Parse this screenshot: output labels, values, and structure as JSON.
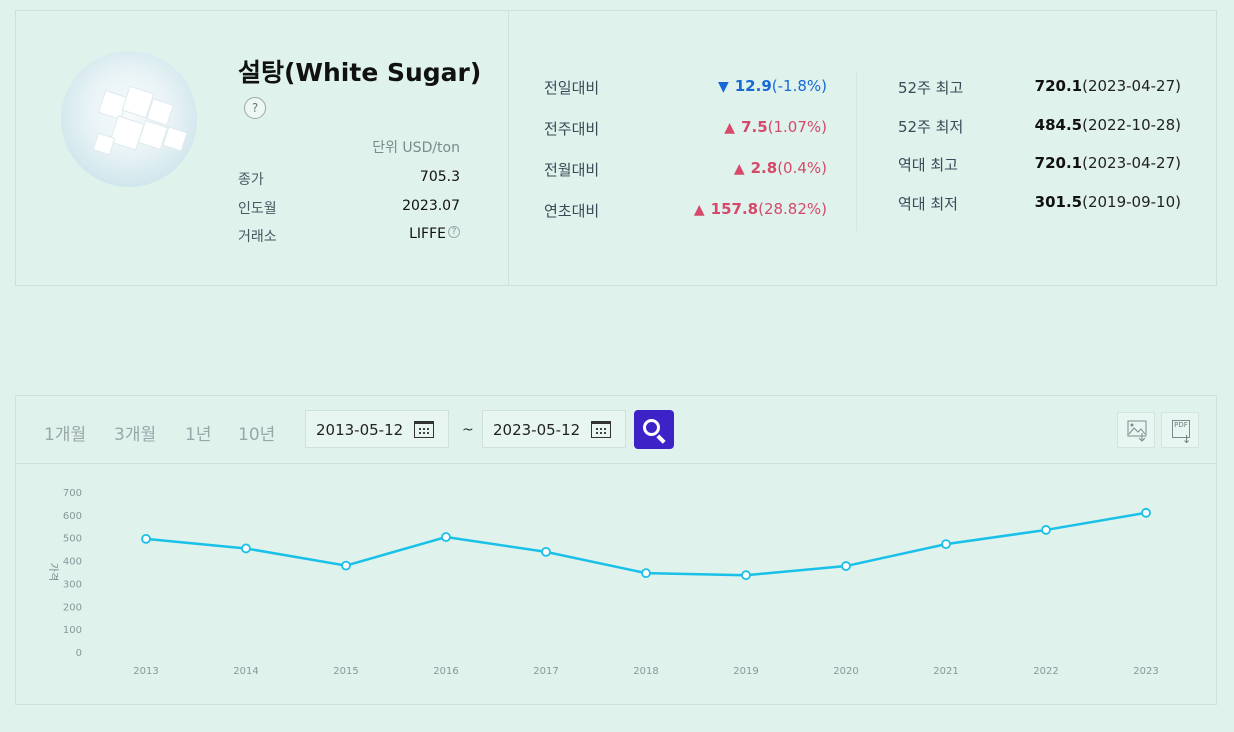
{
  "product": {
    "title": "설탕(White Sugar)",
    "help": "?",
    "unit": "단위 USD/ton",
    "rows": [
      {
        "label": "종가",
        "value": "705.3"
      },
      {
        "label": "인도월",
        "value": "2023.07"
      },
      {
        "label": "거래소",
        "value": "LIFFE"
      }
    ],
    "exchange_help": "?"
  },
  "comparisons": [
    {
      "label": "전일대비",
      "dir": "down",
      "arrow": "▼",
      "value": "12.9",
      "pct": "(-1.8%)"
    },
    {
      "label": "전주대비",
      "dir": "up",
      "arrow": "▲",
      "value": "7.5",
      "pct": "(1.07%)"
    },
    {
      "label": "전월대비",
      "dir": "up",
      "arrow": "▲",
      "value": "2.8",
      "pct": "(0.4%)"
    },
    {
      "label": "연초대비",
      "dir": "up",
      "arrow": "▲",
      "value": "157.8",
      "pct": "(28.82%)"
    }
  ],
  "stats": [
    {
      "label": "52주 최고",
      "value": "720.1",
      "date": "(2023-04-27)"
    },
    {
      "label": "52주 최저",
      "value": "484.5",
      "date": "(2022-10-28)"
    },
    {
      "label": "역대 최고",
      "value": "720.1",
      "date": "(2023-04-27)"
    },
    {
      "label": "역대 최저",
      "value": "301.5",
      "date": "(2019-09-10)"
    }
  ],
  "toolbar": {
    "periods": [
      "1개월",
      "3개월",
      "1년",
      "10년"
    ],
    "start_date": "2013-05-12",
    "end_date": "2023-05-12",
    "tilde": "~",
    "image_icon": "image-download-icon",
    "pdf_icon": "pdf-download-icon",
    "pdf_text": "PDF"
  },
  "colors": {
    "line": "#19c0e8",
    "down": "#1769d6",
    "up": "#d6496a",
    "search": "#3d22c7"
  },
  "chart_data": {
    "type": "line",
    "x": [
      "2013",
      "2014",
      "2015",
      "2016",
      "2017",
      "2018",
      "2019",
      "2020",
      "2021",
      "2022",
      "2023"
    ],
    "series": [
      {
        "values": [
          495,
          453,
          378,
          503,
          438,
          345,
          336,
          376,
          472,
          534,
          609
        ]
      }
    ],
    "ylabel": "가격",
    "yticks": [
      0,
      100,
      200,
      300,
      400,
      500,
      600,
      700
    ],
    "ylim": [
      0,
      700
    ],
    "grid": false,
    "legend": "none"
  }
}
